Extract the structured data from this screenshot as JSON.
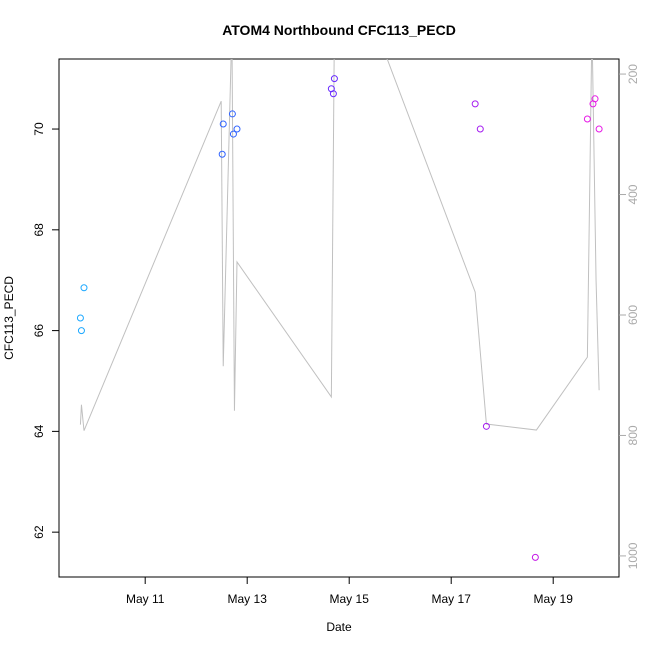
{
  "chart_data": {
    "type": "scatter",
    "title": "ATOM4 Northbound CFC113_PECD",
    "xlabel": "Date",
    "ylabel": "CFC113_PECD",
    "xlim": [
      9.31,
      20.29
    ],
    "ylim": [
      61.11,
      71.39
    ],
    "y2lim": [
      1035,
      175
    ],
    "xticks": [
      {
        "value": 11,
        "label": "May 11"
      },
      {
        "value": 13,
        "label": "May 13"
      },
      {
        "value": 15,
        "label": "May 15"
      },
      {
        "value": 17,
        "label": "May 17"
      },
      {
        "value": 19,
        "label": "May 19"
      }
    ],
    "yticks": [
      62,
      64,
      66,
      68,
      70
    ],
    "y2ticks": [
      200,
      400,
      600,
      800,
      1000
    ],
    "series": [
      {
        "kind": "line",
        "axis": "y2",
        "color": "#c0c0c0",
        "x": [
          9.73,
          9.75,
          9.8,
          12.49,
          12.53,
          12.7,
          12.75,
          12.8,
          14.65,
          14.71,
          15.5,
          17.47,
          17.69,
          18.67,
          19.67,
          19.76,
          19.84,
          19.9
        ],
        "values": [
          782,
          749,
          792,
          245,
          685,
          120,
          759,
          512,
          736,
          120,
          120,
          562,
          781,
          791,
          670,
          120,
          542,
          725
        ]
      },
      {
        "kind": "points",
        "x": [
          9.73,
          9.75,
          9.8,
          12.51,
          12.53,
          12.71,
          12.73,
          12.8,
          14.65,
          14.69,
          14.71,
          17.47,
          17.57,
          17.69,
          18.65,
          19.67,
          19.78,
          19.82,
          19.9
        ],
        "values": [
          66.25,
          66.0,
          66.85,
          69.5,
          70.1,
          70.3,
          69.9,
          70.0,
          70.8,
          70.7,
          71.0,
          70.5,
          70.0,
          64.1,
          61.5,
          70.2,
          70.5,
          70.6,
          70.0
        ],
        "colors": [
          "#1ca8ff",
          "#1ca8ff",
          "#1ca8ff",
          "#2f63ff",
          "#2f63ff",
          "#2f63ff",
          "#2f63ff",
          "#2f63ff",
          "#6a2cff",
          "#6a2cff",
          "#6a2cff",
          "#a41cf0",
          "#a41cf0",
          "#a41cf0",
          "#c418e6",
          "#e619e6",
          "#e619e6",
          "#e619e6",
          "#e619e6"
        ]
      }
    ]
  }
}
